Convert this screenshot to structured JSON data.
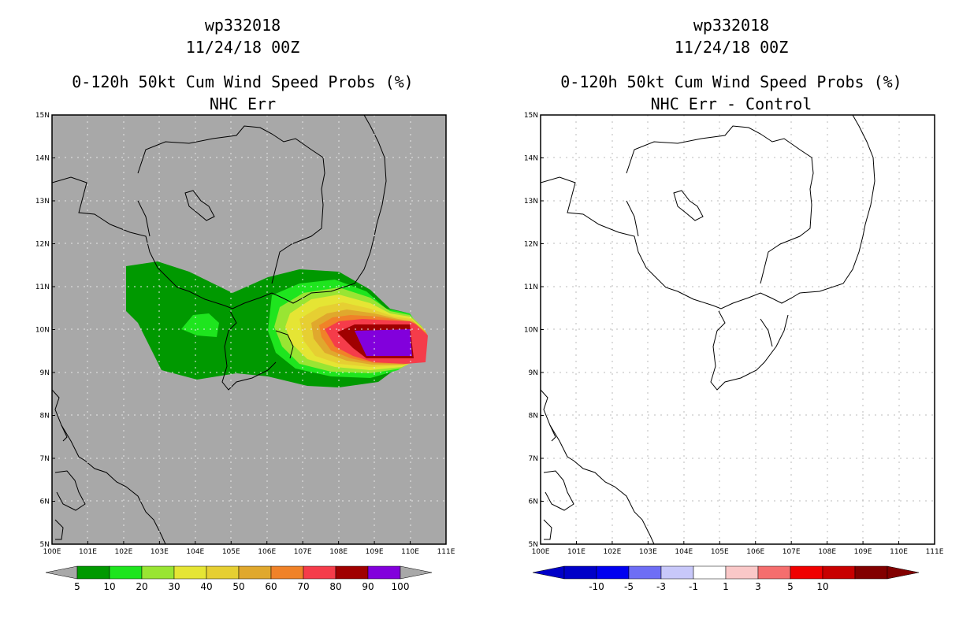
{
  "left": {
    "storm": "wp332018",
    "date": "11/24/18 00Z",
    "title": "0-120h 50kt Cum Wind Speed Probs (%)",
    "subtitle": "NHC Err",
    "background_color": "#a8a8a8",
    "colorbar": {
      "colors": [
        "#009900",
        "#1ee51e",
        "#99e533",
        "#e5e534",
        "#e6cf32",
        "#e0a82d",
        "#f08228",
        "#f53c4a",
        "#a00000",
        "#8200dc"
      ],
      "labels": [
        "5",
        "10",
        "20",
        "30",
        "40",
        "50",
        "60",
        "70",
        "80",
        "90",
        "100"
      ]
    }
  },
  "right": {
    "storm": "wp332018",
    "date": "11/24/18 00Z",
    "title": "0-120h 50kt Cum Wind Speed Probs (%)",
    "subtitle": "NHC Err - Control",
    "background_color": "#ffffff",
    "colorbar": {
      "colors": [
        "#0000c8",
        "#0000f0",
        "#6e6ef5",
        "#c8c8fa",
        "#ffffff",
        "#fac8c8",
        "#f56e6e",
        "#f00000",
        "#c80000",
        "#820000"
      ],
      "labels": [
        "-10",
        "-5",
        "-3",
        "-1",
        "1",
        "3",
        "5",
        "10"
      ]
    }
  },
  "axes": {
    "lat_labels": [
      "5N",
      "6N",
      "7N",
      "8N",
      "9N",
      "10N",
      "11N",
      "12N",
      "13N",
      "14N",
      "15N"
    ],
    "lon_labels": [
      "100E",
      "101E",
      "102E",
      "103E",
      "104E",
      "105E",
      "106E",
      "107E",
      "108E",
      "109E",
      "110E",
      "111E"
    ],
    "lat_range": [
      5,
      15
    ],
    "lon_range": [
      100,
      111
    ]
  }
}
